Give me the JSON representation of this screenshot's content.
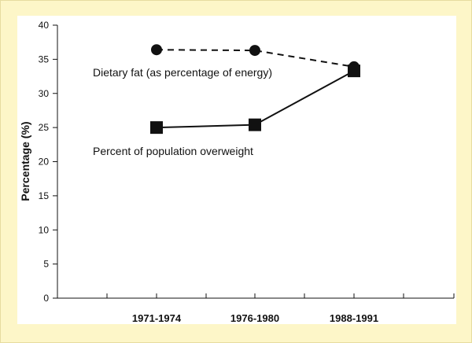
{
  "chart_data": {
    "type": "line",
    "title": "",
    "xlabel": "",
    "ylabel": "Percentage (%)",
    "ylim": [
      0,
      40
    ],
    "yticks": [
      0,
      5,
      10,
      15,
      20,
      25,
      30,
      35,
      40
    ],
    "categories": [
      "1971-1974",
      "1976-1980",
      "1988-1991"
    ],
    "series": [
      {
        "name": "Dietary fat (as percentage of energy)",
        "values": [
          36.4,
          36.3,
          33.9
        ],
        "line_style": "dashed",
        "marker": "circle",
        "color": "#111111"
      },
      {
        "name": "Percent of population overweight",
        "values": [
          25.0,
          25.4,
          33.3
        ],
        "line_style": "solid",
        "marker": "square",
        "color": "#111111"
      }
    ],
    "annotations": [
      {
        "text": "Dietary fat (as percentage of energy)",
        "series": 0
      },
      {
        "text": "Percent of population overweight",
        "series": 1
      }
    ],
    "grid": false,
    "legend": "inline annotations"
  },
  "colors": {
    "background": "#fdf6c8",
    "plot_background": "#ffffff",
    "ink": "#111111"
  }
}
